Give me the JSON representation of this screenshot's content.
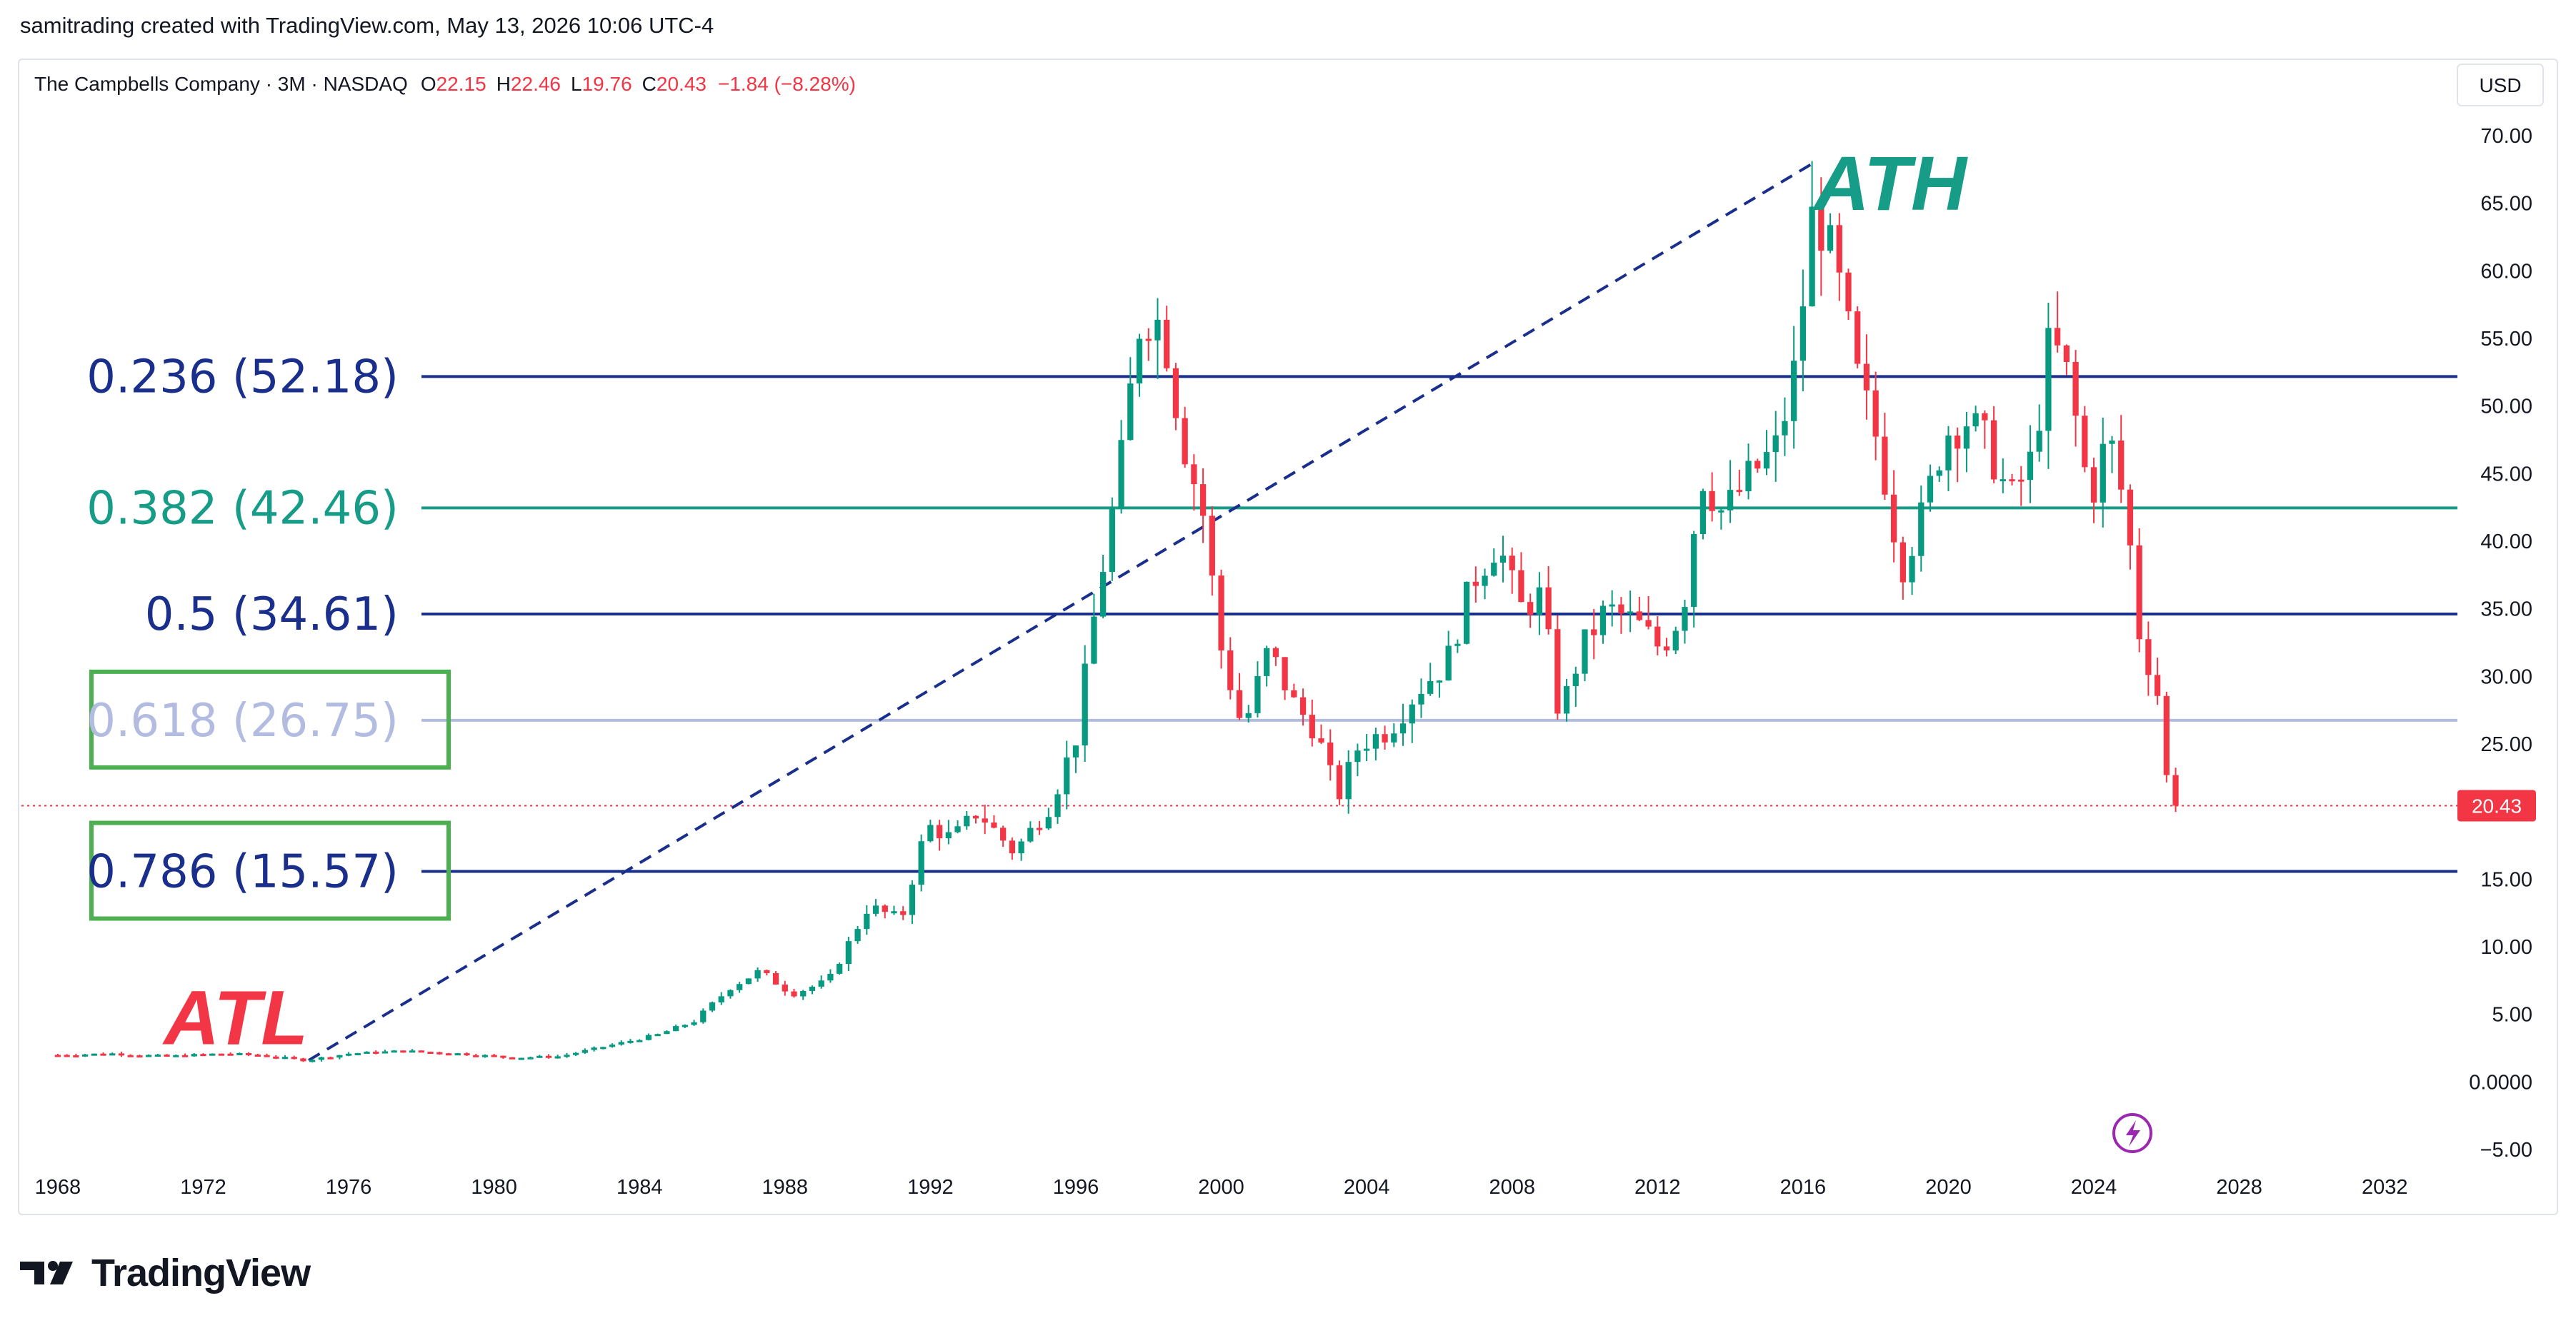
{
  "header": {
    "attribution": "samitrading created with TradingView.com, May 13, 2026 10:06 UTC-4"
  },
  "footer": {
    "brand": "TradingView"
  },
  "colors": {
    "up": "#089981",
    "down": "#f23645",
    "fib_navy": "#1a2f8c",
    "fib_teal": "#169c87",
    "fib_light": "#b2bbe0",
    "box_green": "#4caf50",
    "trend_line": "#1a2f8c"
  },
  "chart_data": {
    "type": "candlestick",
    "legend": {
      "symbol": "The Campbells Company · 3M · NASDAQ",
      "open_label": "O",
      "open": "22.15",
      "high_label": "H",
      "high": "22.46",
      "low_label": "L",
      "low": "19.76",
      "close_label": "C",
      "close": "20.43",
      "change": "−1.84 (−8.28%)"
    },
    "currency": "USD",
    "y_ticks": [
      "70.00",
      "65.00",
      "60.00",
      "55.00",
      "50.00",
      "45.00",
      "40.00",
      "35.00",
      "30.00",
      "25.00",
      "20.00",
      "15.00",
      "10.00",
      "5.00",
      "0.0000",
      "−5.00"
    ],
    "y_range": [
      -5,
      70
    ],
    "x_ticks": [
      "1968",
      "1972",
      "1976",
      "1980",
      "1984",
      "1988",
      "1992",
      "1996",
      "2000",
      "2004",
      "2008",
      "2012",
      "2016",
      "2020",
      "2024",
      "2028",
      "2032"
    ],
    "x_range": [
      1967.0,
      2034.0
    ],
    "last_price_label": "20.43",
    "last_price": 20.43,
    "fib_levels": [
      {
        "ratio": "0.236",
        "value": 52.18,
        "label": "0.236 (52.18)",
        "style": "navy",
        "boxed": false
      },
      {
        "ratio": "0.382",
        "value": 42.46,
        "label": "0.382 (42.46)",
        "style": "teal",
        "boxed": false
      },
      {
        "ratio": "0.5",
        "value": 34.61,
        "label": "0.5 (34.61)",
        "style": "navy",
        "boxed": false
      },
      {
        "ratio": "0.618",
        "value": 26.75,
        "label": "0.618 (26.75)",
        "style": "light",
        "boxed": true
      },
      {
        "ratio": "0.786",
        "value": 15.57,
        "label": "0.786 (15.57)",
        "style": "navy",
        "boxed": true
      }
    ],
    "annotations": {
      "ath": {
        "text": "ATH"
      },
      "atl": {
        "text": "ATL"
      }
    },
    "trend_line": {
      "from": {
        "x": 1974.9,
        "y": 1.6
      },
      "to": {
        "x": 2016.3,
        "y": 68.0
      }
    },
    "price_path": [
      [
        1968.0,
        2.0
      ],
      [
        1969.5,
        2.1
      ],
      [
        1971.0,
        1.9
      ],
      [
        1972.5,
        2.1
      ],
      [
        1973.5,
        2.0
      ],
      [
        1974.8,
        1.6
      ],
      [
        1976.0,
        2.1
      ],
      [
        1977.5,
        2.3
      ],
      [
        1979.0,
        2.1
      ],
      [
        1980.5,
        1.8
      ],
      [
        1981.8,
        1.9
      ],
      [
        1983.0,
        2.6
      ],
      [
        1984.5,
        3.5
      ],
      [
        1985.5,
        4.5
      ],
      [
        1986.5,
        7.0
      ],
      [
        1987.3,
        8.2
      ],
      [
        1988.2,
        6.5
      ],
      [
        1989.2,
        7.5
      ],
      [
        1990.3,
        13.0
      ],
      [
        1991.2,
        12.0
      ],
      [
        1991.9,
        19.0
      ],
      [
        1992.6,
        18.0
      ],
      [
        1993.3,
        20.0
      ],
      [
        1994.3,
        17.0
      ],
      [
        1995.3,
        20.5
      ],
      [
        1996.0,
        25.5
      ],
      [
        1996.6,
        36.0
      ],
      [
        1997.2,
        45.0
      ],
      [
        1997.8,
        57.0
      ],
      [
        1998.4,
        56.0
      ],
      [
        1998.9,
        48.0
      ],
      [
        1999.5,
        42.0
      ],
      [
        2000.0,
        32.0
      ],
      [
        2000.6,
        26.0
      ],
      [
        2001.3,
        32.0
      ],
      [
        2002.0,
        28.0
      ],
      [
        2002.6,
        26.0
      ],
      [
        2003.2,
        21.0
      ],
      [
        2003.8,
        25.0
      ],
      [
        2004.6,
        26.0
      ],
      [
        2005.4,
        29.0
      ],
      [
        2006.2,
        31.0
      ],
      [
        2006.9,
        37.0
      ],
      [
        2007.6,
        40.0
      ],
      [
        2008.2,
        35.0
      ],
      [
        2008.8,
        36.0
      ],
      [
        2009.3,
        27.0
      ],
      [
        2009.9,
        32.0
      ],
      [
        2010.6,
        35.0
      ],
      [
        2011.4,
        34.0
      ],
      [
        2012.1,
        32.0
      ],
      [
        2012.7,
        35.0
      ],
      [
        2013.2,
        45.0
      ],
      [
        2013.8,
        42.0
      ],
      [
        2014.6,
        45.0
      ],
      [
        2015.3,
        47.0
      ],
      [
        2015.8,
        53.0
      ],
      [
        2016.3,
        65.0
      ],
      [
        2016.9,
        60.0
      ],
      [
        2017.5,
        52.0
      ],
      [
        2018.1,
        47.0
      ],
      [
        2018.7,
        38.0
      ],
      [
        2019.3,
        42.0
      ],
      [
        2019.9,
        48.0
      ],
      [
        2020.5,
        49.0
      ],
      [
        2021.1,
        47.0
      ],
      [
        2021.7,
        43.0
      ],
      [
        2022.3,
        46.0
      ],
      [
        2022.8,
        55.0
      ],
      [
        2023.3,
        52.0
      ],
      [
        2023.9,
        43.0
      ],
      [
        2024.4,
        48.0
      ],
      [
        2024.9,
        42.0
      ],
      [
        2025.3,
        32.0
      ],
      [
        2025.7,
        30.0
      ],
      [
        2026.0,
        22.5
      ],
      [
        2026.3,
        20.43
      ]
    ]
  }
}
